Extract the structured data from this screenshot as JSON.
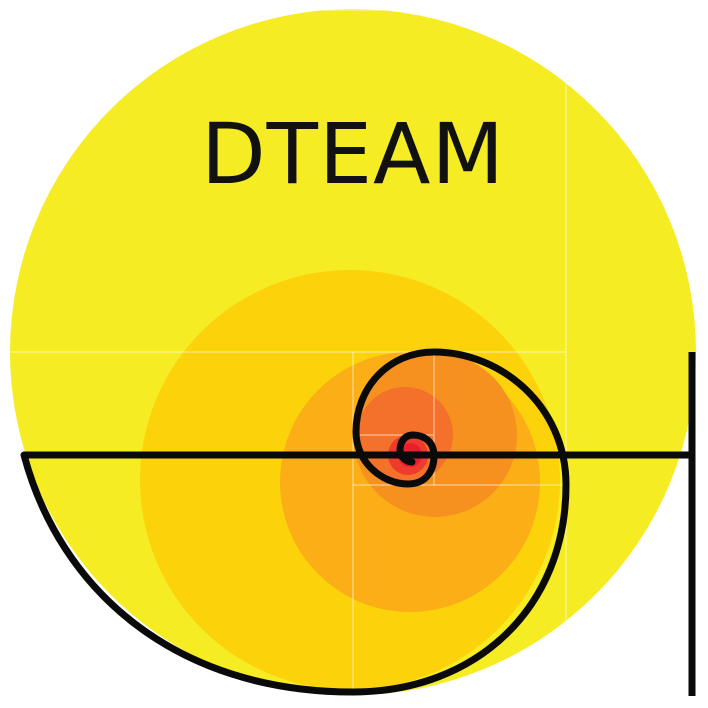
{
  "logo": {
    "wordmark": "DTEAM"
  },
  "colors": {
    "background": "#ffffff",
    "outer_circle": "#f5ec23",
    "circle_2": "#fcd20b",
    "circle_3": "#fbae16",
    "circle_4": "#f6901f",
    "circle_5": "#f3712a",
    "circle_6": "#ee3b2d",
    "circle_7": "#ea1d2e",
    "spiral_stroke": "#0a0a0a",
    "guide_lines": "#ffffff"
  }
}
